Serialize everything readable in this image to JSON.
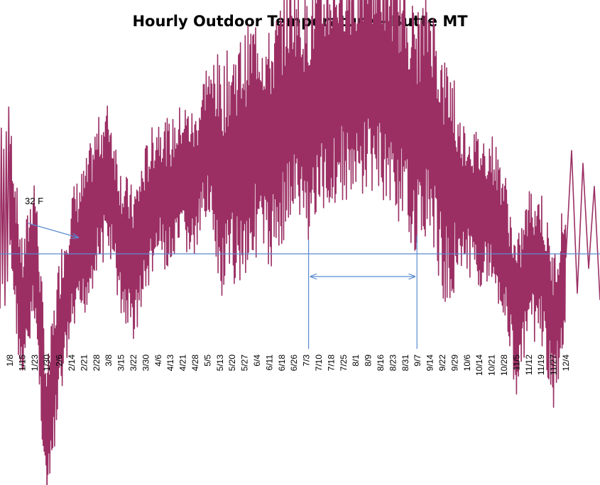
{
  "chart_data": {
    "type": "line",
    "title": "Hourly Outdoor Temperature - Butte MT",
    "xlabel": "",
    "ylabel": "",
    "categories": [
      "1/8",
      "1/15",
      "1/23",
      "1/30",
      "2/6",
      "2/14",
      "2/21",
      "2/28",
      "3/8",
      "3/15",
      "3/22",
      "3/30",
      "4/6",
      "4/13",
      "4/21",
      "4/28",
      "5/5",
      "5/13",
      "5/20",
      "5/27",
      "6/4",
      "6/11",
      "6/18",
      "6/26",
      "7/3",
      "7/10",
      "7/18",
      "7/25",
      "8/1",
      "8/9",
      "8/16",
      "8/23",
      "8/31",
      "9/7",
      "9/14",
      "9/22",
      "9/29",
      "10/6",
      "10/14",
      "10/21",
      "10/28",
      "11/5",
      "11/12",
      "11/19",
      "11/27",
      "12/4"
    ],
    "series_color": "#9b2f64",
    "reference_line": {
      "label": "32 F",
      "value": 32,
      "color": "#5b8bd0"
    },
    "annotation": {
      "start": "7/3",
      "end": "9/7",
      "style": "double-arrow"
    },
    "grid": false,
    "legend": "none",
    "series": [
      {
        "points": [
          {
            "x": "1/8",
            "y": 44
          },
          {
            "x": "1/15",
            "y": 20
          },
          {
            "x": "1/23",
            "y": 34
          },
          {
            "x": "1/30",
            "y": -2
          },
          {
            "x": "2/6",
            "y": 18
          },
          {
            "x": "2/14",
            "y": 30
          },
          {
            "x": "2/21",
            "y": 34
          },
          {
            "x": "2/28",
            "y": 42
          },
          {
            "x": "3/8",
            "y": 46
          },
          {
            "x": "3/15",
            "y": 34
          },
          {
            "x": "3/22",
            "y": 30
          },
          {
            "x": "3/30",
            "y": 38
          },
          {
            "x": "4/6",
            "y": 44
          },
          {
            "x": "4/13",
            "y": 42
          },
          {
            "x": "4/21",
            "y": 46
          },
          {
            "x": "4/28",
            "y": 44
          },
          {
            "x": "5/5",
            "y": 54
          },
          {
            "x": "5/13",
            "y": 44
          },
          {
            "x": "5/20",
            "y": 48
          },
          {
            "x": "5/27",
            "y": 50
          },
          {
            "x": "6/4",
            "y": 54
          },
          {
            "x": "6/11",
            "y": 50
          },
          {
            "x": "6/18",
            "y": 56
          },
          {
            "x": "6/26",
            "y": 60
          },
          {
            "x": "7/3",
            "y": 56
          },
          {
            "x": "7/10",
            "y": 60
          },
          {
            "x": "7/18",
            "y": 62
          },
          {
            "x": "7/25",
            "y": 64
          },
          {
            "x": "8/1",
            "y": 62
          },
          {
            "x": "8/9",
            "y": 66
          },
          {
            "x": "8/16",
            "y": 64
          },
          {
            "x": "8/23",
            "y": 62
          },
          {
            "x": "8/31",
            "y": 58
          },
          {
            "x": "9/7",
            "y": 54
          },
          {
            "x": "9/14",
            "y": 58
          },
          {
            "x": "9/22",
            "y": 46
          },
          {
            "x": "9/29",
            "y": 44
          },
          {
            "x": "10/6",
            "y": 42
          },
          {
            "x": "10/14",
            "y": 40
          },
          {
            "x": "10/21",
            "y": 40
          },
          {
            "x": "10/28",
            "y": 34
          },
          {
            "x": "11/5",
            "y": 20
          },
          {
            "x": "11/12",
            "y": 30
          },
          {
            "x": "11/19",
            "y": 30
          },
          {
            "x": "11/27",
            "y": 18
          },
          {
            "x": "12/4",
            "y": 30
          }
        ]
      }
    ]
  }
}
